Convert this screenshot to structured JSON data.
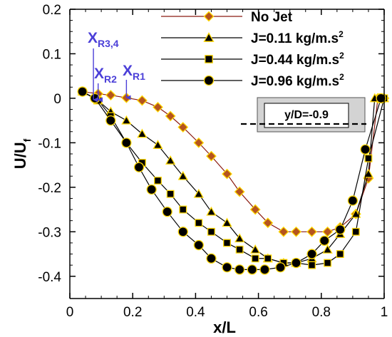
{
  "chart_data": {
    "type": "line",
    "xlabel": "x/L",
    "ylabel": "U/U",
    "ylabel_sub": "f",
    "xlim": [
      0,
      1
    ],
    "ylim": [
      -0.45,
      0.2
    ],
    "xticks": [
      0,
      0.2,
      0.4,
      0.6,
      0.8,
      1
    ],
    "xtick_labels": [
      "0",
      "0.2",
      "0.4",
      "0.6",
      "0.8",
      "1"
    ],
    "yticks": [
      -0.4,
      -0.3,
      -0.2,
      -0.1,
      0,
      0.1,
      0.2
    ],
    "ytick_labels": [
      "-0.4",
      "-0.3",
      "-0.2",
      "-0.1",
      "0",
      "0.1",
      "0.2"
    ],
    "grid": false,
    "legend_position": "top-right",
    "series": [
      {
        "name": "No Jet",
        "marker": "diamond",
        "line_color": "#8b1a10",
        "marker_fill": "#b5541e",
        "marker_edge": "#ffd700",
        "x": [
          0.04,
          0.09,
          0.13,
          0.18,
          0.23,
          0.28,
          0.32,
          0.36,
          0.41,
          0.45,
          0.5,
          0.54,
          0.59,
          0.63,
          0.68,
          0.72,
          0.77,
          0.82,
          0.86,
          0.91,
          0.95,
          0.98,
          1.0
        ],
        "y": [
          0.015,
          0.01,
          0.007,
          0.001,
          -0.005,
          -0.02,
          -0.04,
          -0.065,
          -0.1,
          -0.13,
          -0.17,
          -0.21,
          -0.25,
          -0.28,
          -0.3,
          -0.3,
          -0.3,
          -0.3,
          -0.29,
          -0.26,
          -0.18,
          0.0,
          0.0
        ]
      },
      {
        "name": "J=0.11 kg/m.s",
        "name_sup": "2",
        "marker": "triangle",
        "line_color": "#000000",
        "marker_fill": "#000000",
        "marker_edge": "#ffd700",
        "x": [
          0.04,
          0.09,
          0.13,
          0.18,
          0.23,
          0.28,
          0.32,
          0.36,
          0.41,
          0.45,
          0.5,
          0.54,
          0.59,
          0.63,
          0.68,
          0.72,
          0.77,
          0.82,
          0.86,
          0.91,
          0.95,
          0.97,
          1.0
        ],
        "y": [
          0.015,
          -0.005,
          -0.03,
          -0.05,
          -0.08,
          -0.105,
          -0.14,
          -0.175,
          -0.215,
          -0.255,
          -0.28,
          -0.315,
          -0.34,
          -0.36,
          -0.37,
          -0.37,
          -0.36,
          -0.34,
          -0.305,
          -0.26,
          -0.17,
          0.0,
          0.0
        ]
      },
      {
        "name": "J=0.44 kg/m.s",
        "name_sup": "2",
        "marker": "square",
        "line_color": "#000000",
        "marker_fill": "#000000",
        "marker_edge": "#ffd700",
        "x": [
          0.04,
          0.09,
          0.13,
          0.18,
          0.23,
          0.28,
          0.32,
          0.36,
          0.41,
          0.45,
          0.5,
          0.54,
          0.59,
          0.63,
          0.68,
          0.72,
          0.77,
          0.82,
          0.86,
          0.91,
          0.95,
          1.0
        ],
        "y": [
          0.015,
          -0.005,
          -0.04,
          -0.1,
          -0.145,
          -0.185,
          -0.215,
          -0.25,
          -0.28,
          -0.3,
          -0.325,
          -0.34,
          -0.36,
          -0.36,
          -0.37,
          -0.37,
          -0.375,
          -0.37,
          -0.35,
          -0.3,
          -0.135,
          0.0
        ]
      },
      {
        "name": "J=0.96 kg/m.s",
        "name_sup": "2",
        "marker": "circle",
        "line_color": "#000000",
        "marker_fill": "#000000",
        "marker_edge": "#ffd700",
        "x": [
          0.04,
          0.08,
          0.13,
          0.18,
          0.22,
          0.26,
          0.31,
          0.36,
          0.41,
          0.45,
          0.5,
          0.54,
          0.58,
          0.62,
          0.67,
          0.72,
          0.77,
          0.81,
          0.86,
          0.9,
          0.94,
          0.99
        ],
        "y": [
          0.015,
          0.0,
          -0.05,
          -0.1,
          -0.155,
          -0.205,
          -0.255,
          -0.3,
          -0.33,
          -0.36,
          -0.38,
          -0.385,
          -0.385,
          -0.385,
          -0.38,
          -0.37,
          -0.35,
          -0.32,
          -0.295,
          -0.23,
          -0.115,
          0.0
        ]
      }
    ],
    "annotations": [
      {
        "label": "X",
        "sub": "R3,4",
        "arrow_x": 0.075
      },
      {
        "label": "X",
        "sub": "R2",
        "arrow_x": 0.09
      },
      {
        "label": "X",
        "sub": "R1",
        "arrow_x": 0.18
      }
    ],
    "annotation_color": "#4b3fd8",
    "inset": {
      "label": "y/D=-0.9",
      "x": [
        0.6,
        0.95
      ],
      "y_level": -0.07
    }
  }
}
